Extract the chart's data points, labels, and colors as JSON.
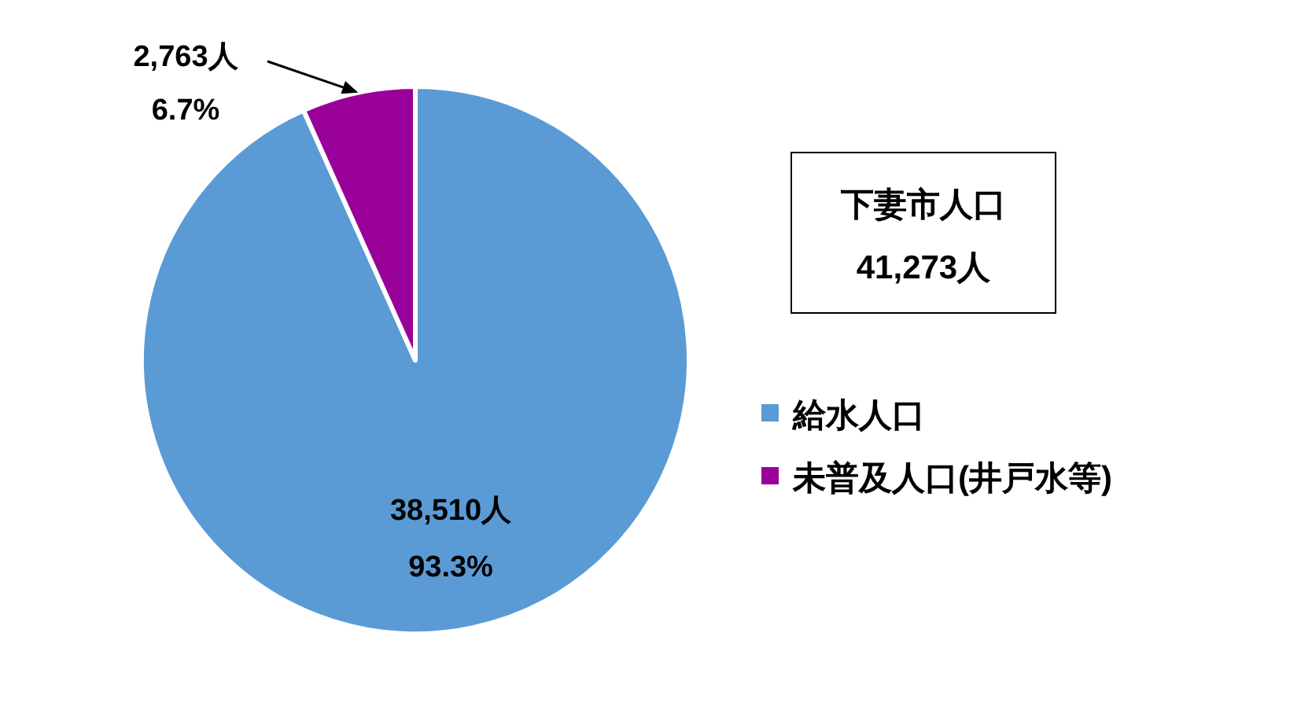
{
  "chart_data": {
    "type": "pie",
    "categories": [
      "給水人口",
      "未普及人口(井戸水等)"
    ],
    "values": [
      38510,
      2763
    ],
    "colors": [
      "#5b9bd5",
      "#990099"
    ],
    "value_labels": [
      "38,510人\n93.3%",
      "2,763人\n6.7%"
    ],
    "annotations": [
      "下妻市人口\n41,273人"
    ],
    "legend": "right"
  }
}
